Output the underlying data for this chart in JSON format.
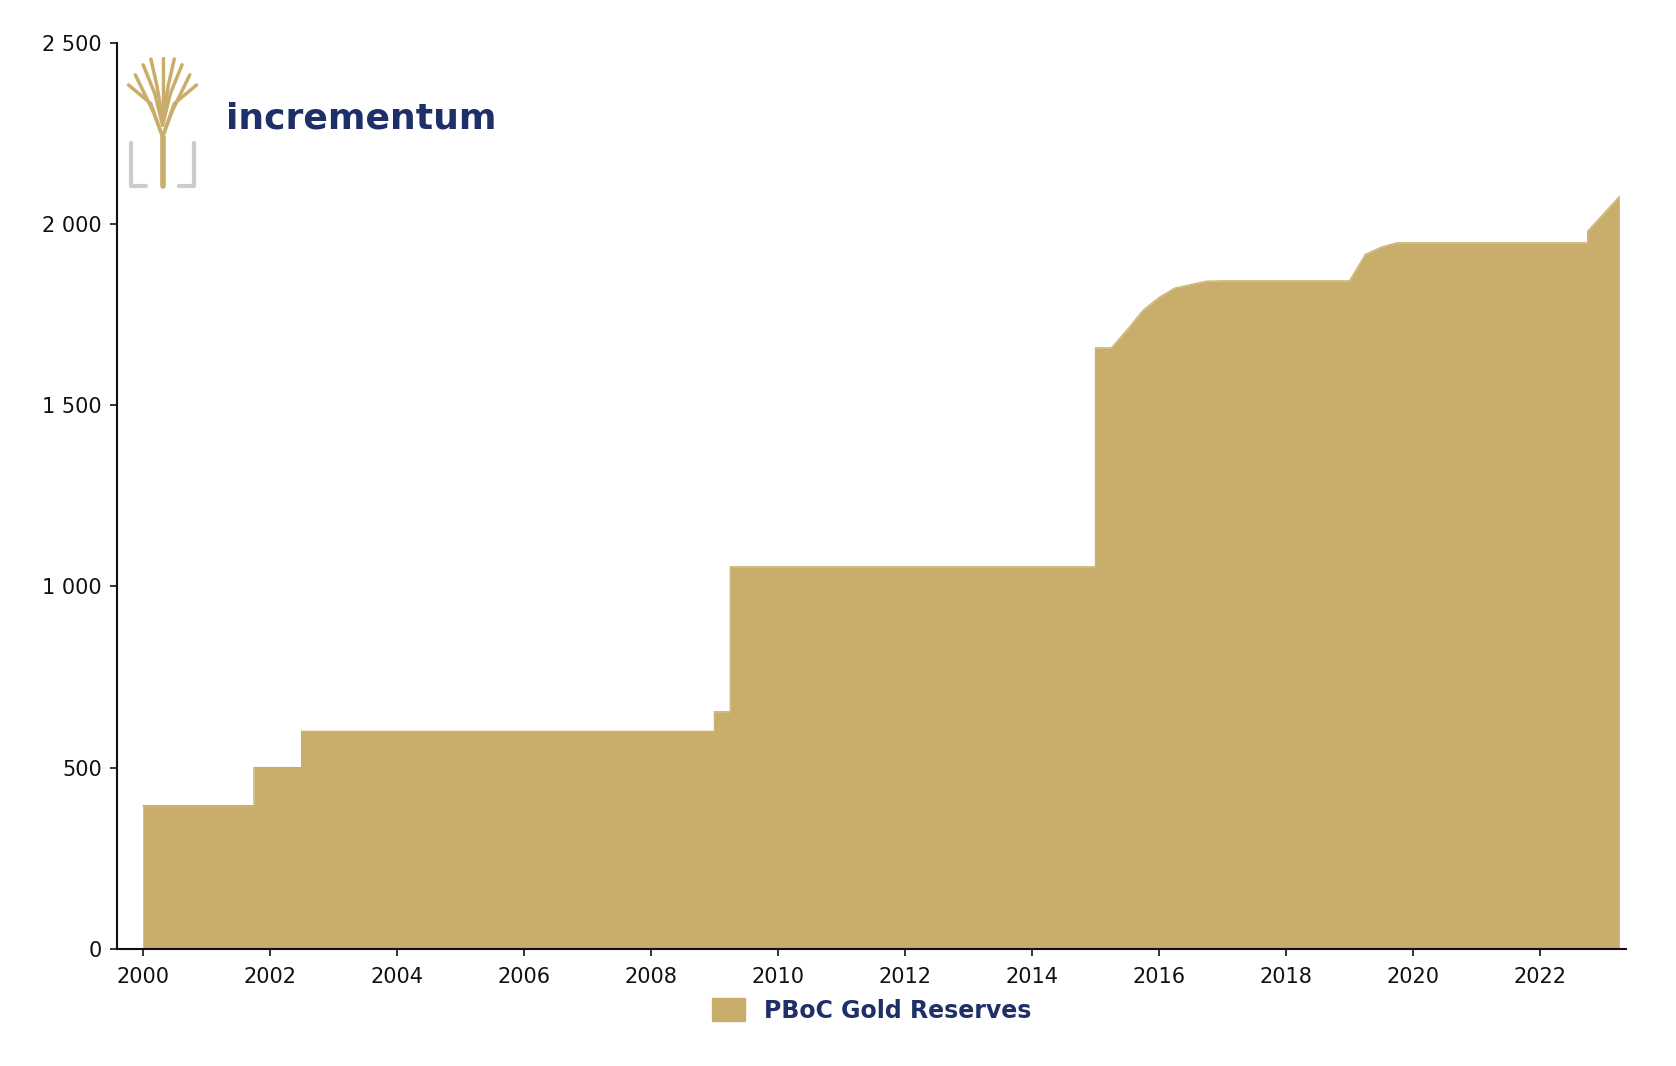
{
  "legend_label": "PBoC Gold Reserves",
  "fill_color": "#C9AE6B",
  "line_color": "#C9AE6B",
  "background_color": "#FFFFFF",
  "axis_color": "#111111",
  "legend_text_color": "#1F3068",
  "incrementum_text_color": "#1F3068",
  "ylim": [
    0,
    2500
  ],
  "yticks": [
    0,
    500,
    1000,
    1500,
    2000,
    2500
  ],
  "ytick_labels": [
    "0",
    "500",
    "1 000",
    "1 500",
    "2 000",
    "2 500"
  ],
  "xticks": [
    2000,
    2002,
    2004,
    2006,
    2008,
    2010,
    2012,
    2014,
    2016,
    2018,
    2020,
    2022
  ],
  "xlim_left": 1999.6,
  "xlim_right": 2023.35,
  "data_x": [
    2000.0,
    2001.75,
    2001.75,
    2002.5,
    2002.5,
    2009.0,
    2009.0,
    2009.25,
    2009.25,
    2015.0,
    2015.0,
    2015.25,
    2015.5,
    2015.75,
    2016.0,
    2016.25,
    2016.75,
    2017.0,
    2019.0,
    2019.25,
    2019.5,
    2019.75,
    2020.0,
    2022.75,
    2022.75,
    2023.25
  ],
  "data_y": [
    395,
    395,
    500,
    500,
    600,
    600,
    654,
    654,
    1054,
    1054,
    1658,
    1658,
    1708,
    1762,
    1797,
    1823,
    1842,
    1843,
    1843,
    1916,
    1936,
    1948,
    1948,
    1948,
    1980,
    2076
  ]
}
